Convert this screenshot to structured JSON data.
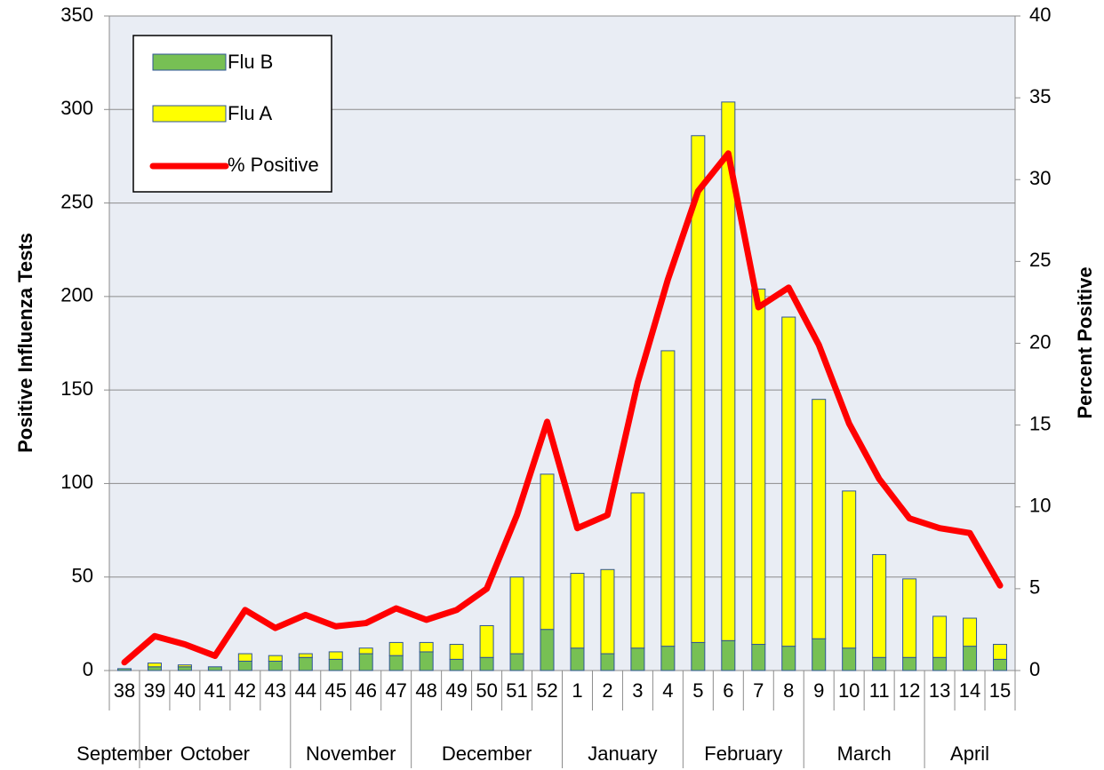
{
  "chart_data": {
    "type": "bar",
    "categories": [
      "38",
      "39",
      "40",
      "41",
      "42",
      "43",
      "44",
      "45",
      "46",
      "47",
      "48",
      "49",
      "50",
      "51",
      "52",
      "1",
      "2",
      "3",
      "4",
      "5",
      "6",
      "7",
      "8",
      "9",
      "10",
      "11",
      "12",
      "13",
      "14",
      "15"
    ],
    "month_labels": [
      "September",
      "October",
      null,
      null,
      null,
      null,
      "November",
      null,
      null,
      null,
      "December",
      null,
      null,
      null,
      null,
      "January",
      null,
      null,
      null,
      "February",
      null,
      null,
      null,
      "March",
      null,
      null,
      null,
      "April",
      null,
      null
    ],
    "y_label": "Positive Influenza Tests",
    "y2_label": "Percent Positive",
    "series": [
      {
        "name": "Flu B",
        "type": "bar",
        "color": "#77c054",
        "values": [
          1,
          2,
          2,
          2,
          5,
          5,
          7,
          6,
          9,
          8,
          10,
          6,
          7,
          9,
          22,
          12,
          9,
          12,
          13,
          15,
          16,
          14,
          13,
          17,
          12,
          7,
          7,
          7,
          13,
          6
        ]
      },
      {
        "name": "Flu A",
        "type": "bar",
        "color": "#ffff00",
        "values": [
          0,
          2,
          1,
          0,
          4,
          3,
          2,
          4,
          3,
          7,
          5,
          8,
          17,
          41,
          83,
          40,
          45,
          83,
          158,
          271,
          288,
          190,
          176,
          128,
          84,
          55,
          42,
          22,
          15,
          8
        ]
      },
      {
        "name": "% Positive",
        "type": "line",
        "axis": "y2",
        "color": "#ff0000",
        "values": [
          0.5,
          2.1,
          1.6,
          0.9,
          3.7,
          2.6,
          3.4,
          2.7,
          2.9,
          3.8,
          3.1,
          3.7,
          5.0,
          9.5,
          15.2,
          8.7,
          9.5,
          17.6,
          23.9,
          29.3,
          31.6,
          22.2,
          23.4,
          19.9,
          15.1,
          11.7,
          9.3,
          8.7,
          8.4,
          5.2
        ]
      }
    ],
    "ylim": [
      0,
      350
    ],
    "yticks": [
      0,
      50,
      100,
      150,
      200,
      250,
      300,
      350
    ],
    "y2lim": [
      0,
      40
    ],
    "y2ticks": [
      0,
      5,
      10,
      15,
      20,
      25,
      30,
      35,
      40
    ],
    "grid": true,
    "legend": "top-left"
  }
}
